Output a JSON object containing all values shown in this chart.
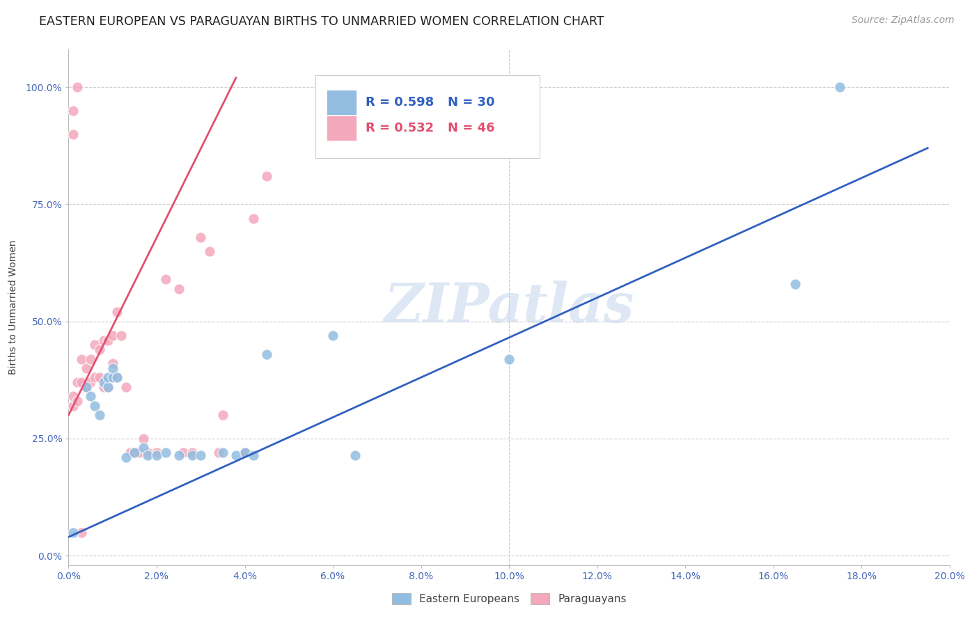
{
  "title": "EASTERN EUROPEAN VS PARAGUAYAN BIRTHS TO UNMARRIED WOMEN CORRELATION CHART",
  "source": "Source: ZipAtlas.com",
  "ylabel": "Births to Unmarried Women",
  "xlim": [
    0.0,
    0.2
  ],
  "ylim": [
    -0.02,
    1.08
  ],
  "xtick_labels": [
    "0.0%",
    "2.0%",
    "4.0%",
    "6.0%",
    "8.0%",
    "10.0%",
    "12.0%",
    "14.0%",
    "16.0%",
    "18.0%",
    "20.0%"
  ],
  "xtick_vals": [
    0.0,
    0.02,
    0.04,
    0.06,
    0.08,
    0.1,
    0.12,
    0.14,
    0.16,
    0.18,
    0.2
  ],
  "ytick_labels": [
    "0.0%",
    "25.0%",
    "50.0%",
    "75.0%",
    "100.0%"
  ],
  "ytick_vals": [
    0.0,
    0.25,
    0.5,
    0.75,
    1.0
  ],
  "blue_R": "0.598",
  "blue_N": "30",
  "pink_R": "0.532",
  "pink_N": "46",
  "blue_color": "#92bde0",
  "pink_color": "#f4a8bc",
  "blue_line_color": "#3060c0",
  "pink_line_color": "#e05070",
  "legend_label_blue": "Eastern Europeans",
  "legend_label_pink": "Paraguayans",
  "watermark": "ZIPatlas",
  "blue_scatter_x": [
    0.001,
    0.004,
    0.005,
    0.006,
    0.007,
    0.008,
    0.009,
    0.009,
    0.01,
    0.01,
    0.011,
    0.013,
    0.015,
    0.017,
    0.018,
    0.02,
    0.022,
    0.025,
    0.028,
    0.03,
    0.035,
    0.038,
    0.04,
    0.042,
    0.045,
    0.06,
    0.065,
    0.1,
    0.165,
    0.175
  ],
  "blue_scatter_y": [
    0.05,
    0.36,
    0.34,
    0.32,
    0.3,
    0.37,
    0.36,
    0.38,
    0.38,
    0.4,
    0.38,
    0.21,
    0.22,
    0.23,
    0.215,
    0.215,
    0.22,
    0.215,
    0.215,
    0.215,
    0.22,
    0.215,
    0.22,
    0.215,
    0.43,
    0.47,
    0.215,
    0.42,
    0.58,
    1.0
  ],
  "pink_scatter_x": [
    0.001,
    0.001,
    0.002,
    0.002,
    0.003,
    0.003,
    0.004,
    0.004,
    0.005,
    0.005,
    0.006,
    0.006,
    0.007,
    0.007,
    0.008,
    0.008,
    0.009,
    0.009,
    0.01,
    0.01,
    0.011,
    0.011,
    0.012,
    0.013,
    0.014,
    0.015,
    0.016,
    0.017,
    0.018,
    0.02,
    0.022,
    0.025,
    0.026,
    0.028,
    0.03,
    0.032,
    0.034,
    0.035,
    0.04,
    0.04,
    0.042,
    0.045,
    0.001,
    0.001,
    0.002,
    0.003
  ],
  "pink_scatter_y": [
    0.34,
    0.32,
    0.37,
    0.33,
    0.42,
    0.37,
    0.4,
    0.36,
    0.42,
    0.37,
    0.45,
    0.38,
    0.44,
    0.38,
    0.46,
    0.36,
    0.46,
    0.36,
    0.41,
    0.47,
    0.52,
    0.38,
    0.47,
    0.36,
    0.22,
    0.22,
    0.22,
    0.25,
    0.22,
    0.22,
    0.59,
    0.57,
    0.22,
    0.22,
    0.68,
    0.65,
    0.22,
    0.3,
    0.22,
    0.22,
    0.72,
    0.81,
    0.9,
    0.95,
    1.0,
    0.05
  ],
  "blue_line_x": [
    0.0,
    0.195
  ],
  "blue_line_y": [
    0.04,
    0.87
  ],
  "pink_line_x": [
    0.0,
    0.038
  ],
  "pink_line_y": [
    0.3,
    1.02
  ],
  "grid_color": "#cccccc",
  "background_color": "#ffffff",
  "title_fontsize": 12.5,
  "axis_label_fontsize": 10,
  "tick_fontsize": 10,
  "source_fontsize": 10,
  "legend_fontsize": 13,
  "marker_size": 120
}
